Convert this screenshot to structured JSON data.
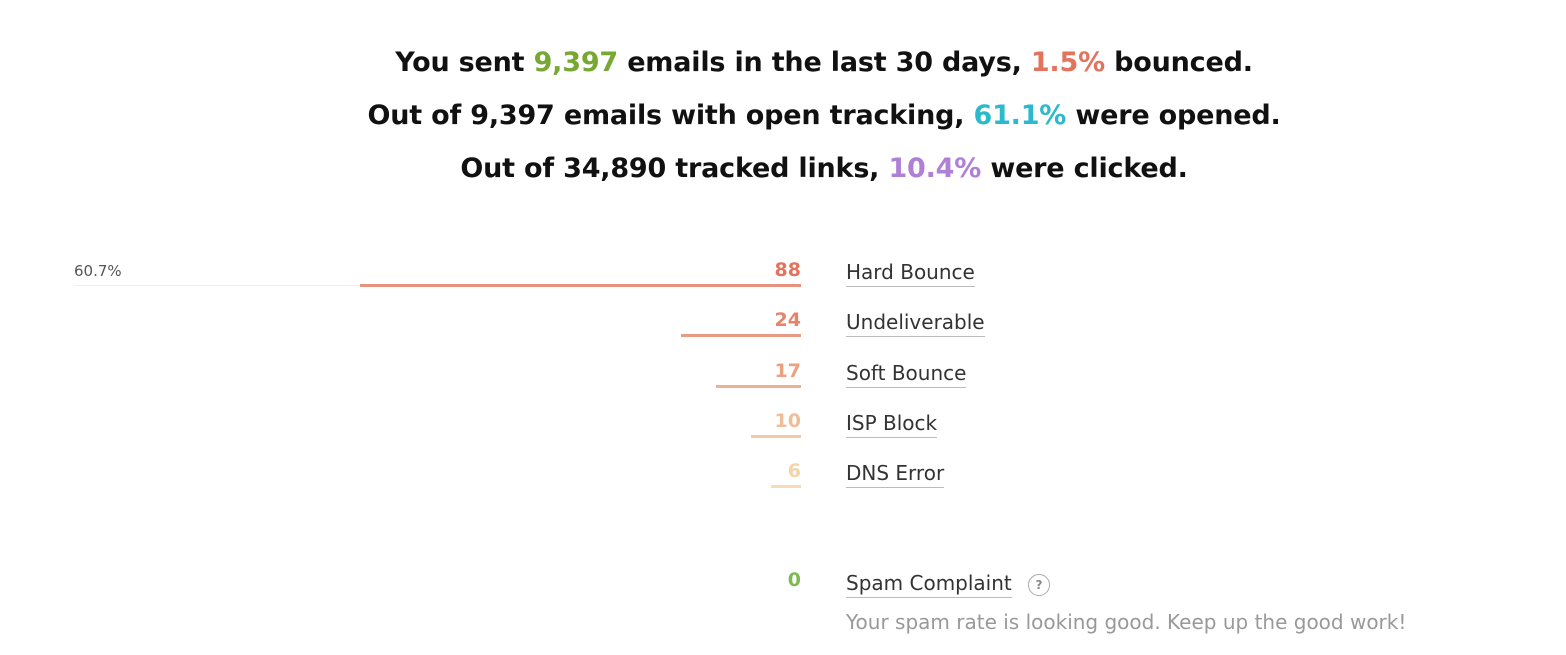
{
  "summary": {
    "line1": {
      "pre": "You sent ",
      "sent": "9,397",
      "mid": " emails in the last 30 days, ",
      "bounce_pct": "1.5%",
      "post": " bounced."
    },
    "line2": {
      "pre": "Out of 9,397 emails with open tracking, ",
      "open_pct": "61.1%",
      "post": " were opened."
    },
    "line3": {
      "pre": "Out of 34,890 tracked links, ",
      "click_pct": "10.4%",
      "post": " were clicked."
    }
  },
  "colors": {
    "sent": "#76a832",
    "bounced": "#e3735d",
    "opened": "#2bb9cc",
    "clicked": "#b07fd6",
    "spam_ok": "#7dbb52"
  },
  "bounce_breakdown": {
    "top_percentage": "60.7%",
    "max_value": 145,
    "items": [
      {
        "label": "Hard Bounce",
        "count": "88",
        "value": 88,
        "color": "#e3735d",
        "bar_color": "#e8917e"
      },
      {
        "label": "Undeliverable",
        "count": "24",
        "value": 24,
        "color": "#e8836a",
        "bar_color": "#eb9a85"
      },
      {
        "label": "Soft Bounce",
        "count": "17",
        "value": 17,
        "color": "#eca07e",
        "bar_color": "#efb096"
      },
      {
        "label": "ISP Block",
        "count": "10",
        "value": 10,
        "color": "#f0bd98",
        "bar_color": "#f3c9a9"
      },
      {
        "label": "DNS Error",
        "count": "6",
        "value": 6,
        "color": "#f4d3a8",
        "bar_color": "#f6dbb8"
      }
    ]
  },
  "spam": {
    "label": "Spam Complaint",
    "count": "0",
    "help_icon": "?",
    "note": "Your spam rate is looking good. Keep up the good work!"
  }
}
